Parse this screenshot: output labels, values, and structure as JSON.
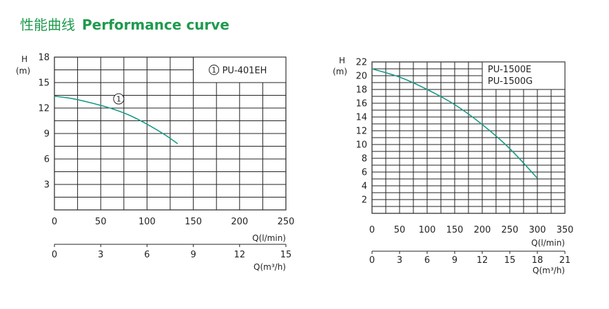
{
  "title_cn": "性能曲线",
  "title_en": "Performance curve",
  "colors": {
    "title": "#1f9a4e",
    "curve": "#159a86",
    "grid": "#222222"
  },
  "chart_data": [
    {
      "type": "line",
      "ylabel_line1": "H",
      "ylabel_line2": "(m)",
      "ylim": [
        0,
        18
      ],
      "yticks": [
        3,
        6,
        9,
        12,
        15,
        18
      ],
      "grid": true,
      "xlim": [
        0,
        250
      ],
      "xticks": [
        0,
        50,
        100,
        150,
        200,
        250
      ],
      "xlabel": "Q(l/min)",
      "x2lim": [
        0,
        15
      ],
      "x2ticks": [
        0,
        3,
        6,
        9,
        12,
        15
      ],
      "x2label": "Q(m³/h)",
      "legend": "top-right",
      "legend_entries": [
        "PU-401EH"
      ],
      "series": [
        {
          "name": "PU-401EH",
          "marker": "1",
          "x": [
            0,
            20,
            40,
            60,
            80,
            100,
            120,
            133
          ],
          "y": [
            13.4,
            13.1,
            12.6,
            12.0,
            11.2,
            10.1,
            8.8,
            7.8
          ]
        }
      ]
    },
    {
      "type": "line",
      "ylabel_line1": "H",
      "ylabel_line2": "(m)",
      "ylim": [
        0,
        22
      ],
      "yticks": [
        2,
        4,
        6,
        8,
        10,
        12,
        14,
        16,
        18,
        20,
        22
      ],
      "grid": true,
      "xlim": [
        0,
        350
      ],
      "xticks": [
        0,
        50,
        100,
        150,
        200,
        250,
        300,
        350
      ],
      "xlabel": "Q(l/min)",
      "x2lim": [
        0,
        21
      ],
      "x2ticks": [
        0,
        3,
        6,
        9,
        12,
        15,
        18,
        21
      ],
      "x2label": "Q(m³/h)",
      "legend": "top-right",
      "legend_entries": [
        "PU-1500E",
        "PU-1500G"
      ],
      "series": [
        {
          "name": "PU-1500E",
          "x": [
            0,
            50,
            100,
            150,
            200,
            250,
            300
          ],
          "y": [
            21.0,
            19.8,
            18.0,
            15.8,
            12.9,
            9.4,
            5.1
          ]
        }
      ]
    }
  ]
}
